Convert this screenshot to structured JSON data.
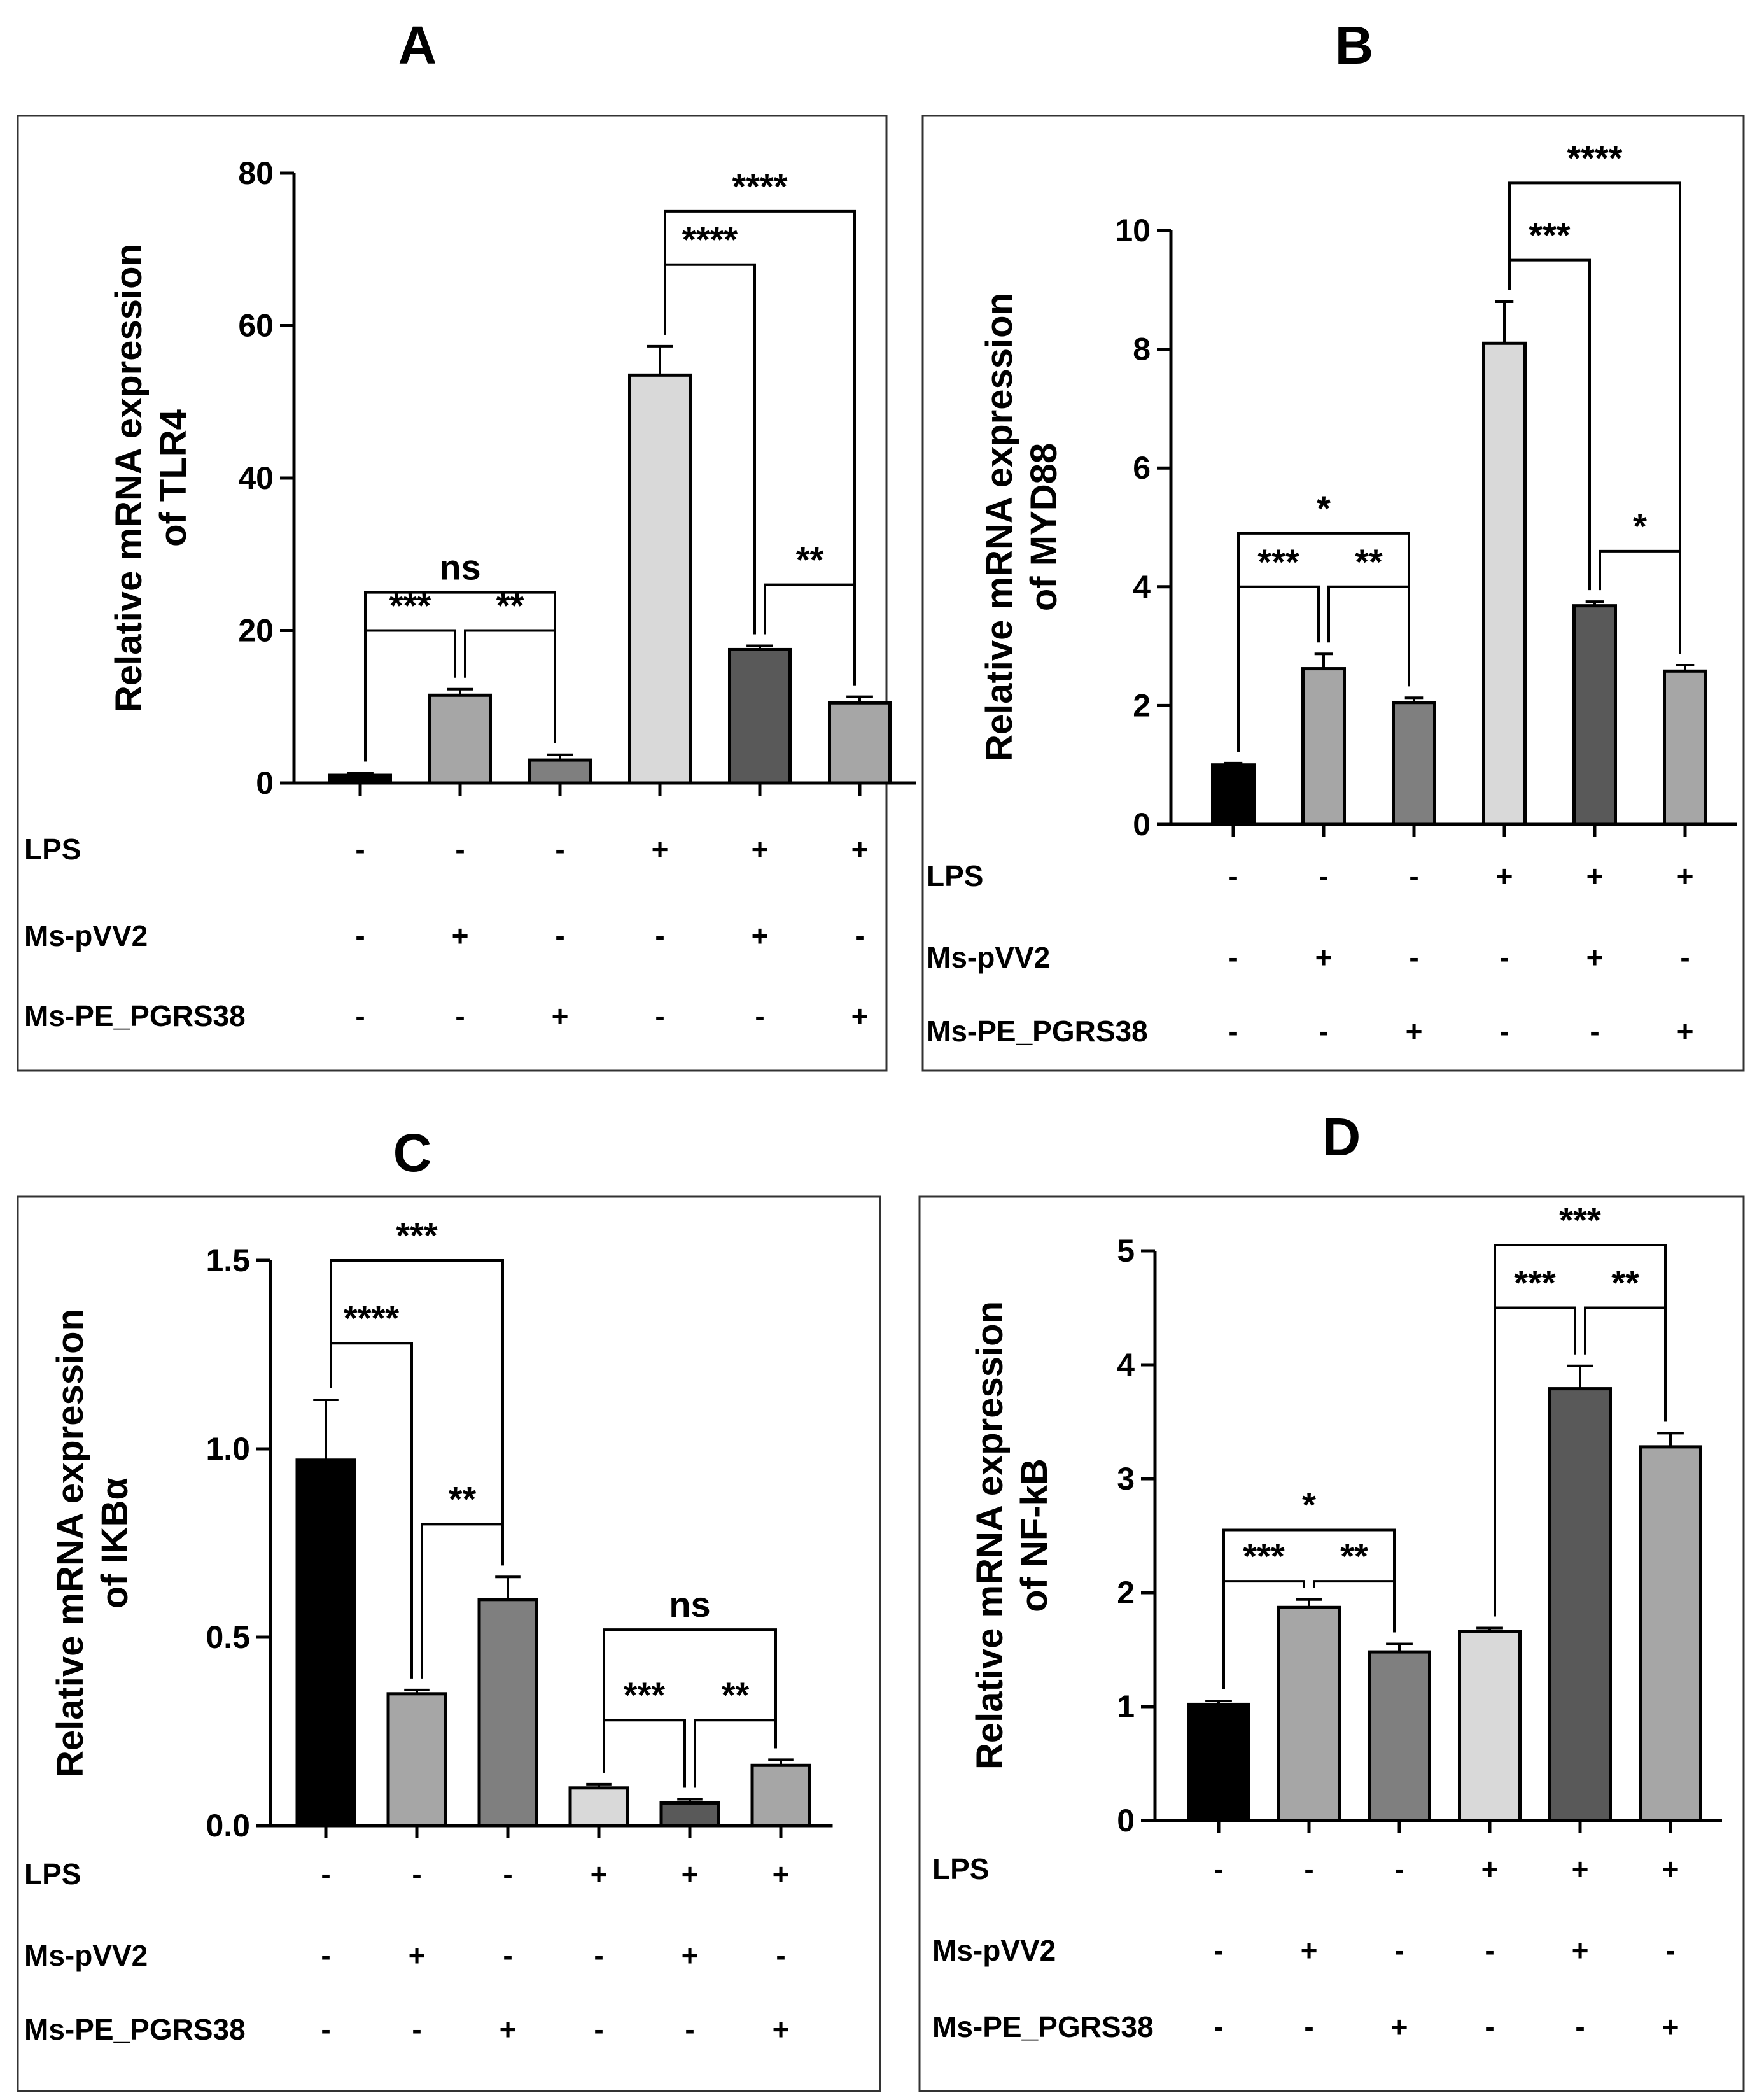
{
  "chart_data": [
    {
      "type": "bar",
      "panel": "A",
      "ylabel": [
        "Relative mRNA expression",
        "of TLR4"
      ],
      "ylim": [
        0,
        80
      ],
      "ticks": [
        "0",
        "20",
        "40",
        "60",
        "80"
      ],
      "values": [
        1,
        11.5,
        3,
        53.5,
        17.5,
        10.5
      ],
      "errors": [
        0.3,
        0.8,
        0.7,
        3.8,
        0.5,
        0.8
      ],
      "colors": [
        "#000000",
        "#a6a6a6",
        "#7f7f7f",
        "#d9d9d9",
        "#595959",
        "#a6a6a6"
      ],
      "brackets": [
        {
          "from": 0,
          "to": 2,
          "y": 25,
          "label": "ns"
        },
        {
          "from": 0,
          "to": 1,
          "y": 20,
          "label": "***"
        },
        {
          "from": 1,
          "to": 2,
          "y": 20,
          "label": "**"
        },
        {
          "from": 3,
          "to": 5,
          "y": 75,
          "label": "****"
        },
        {
          "from": 3,
          "to": 4,
          "y": 68,
          "label": "****"
        },
        {
          "from": 4,
          "to": 5,
          "y": 26,
          "label": "**"
        }
      ],
      "treatments": {
        "rows": [
          "LPS",
          "Ms-pVV2",
          "Ms-PE_PGRS38"
        ],
        "signs": [
          [
            "-",
            "-",
            "-",
            "+",
            "+",
            "+"
          ],
          [
            "-",
            "+",
            "-",
            "-",
            "+",
            "-"
          ],
          [
            "-",
            "-",
            "+",
            "-",
            "-",
            "+"
          ]
        ]
      }
    },
    {
      "type": "bar",
      "panel": "B",
      "ylabel": [
        "Relative mRNA expression",
        "of MYD88"
      ],
      "ylim": [
        0,
        10
      ],
      "ticks": [
        "0",
        "2",
        "4",
        "6",
        "8",
        "10"
      ],
      "values": [
        1,
        2.62,
        2.05,
        8.1,
        3.68,
        2.58
      ],
      "errors": [
        0.03,
        0.25,
        0.08,
        0.7,
        0.07,
        0.1
      ],
      "colors": [
        "#000000",
        "#a6a6a6",
        "#7f7f7f",
        "#d9d9d9",
        "#595959",
        "#a6a6a6"
      ],
      "brackets": [
        {
          "from": 0,
          "to": 2,
          "y": 4.9,
          "label": "*"
        },
        {
          "from": 0,
          "to": 1,
          "y": 4.0,
          "label": "***"
        },
        {
          "from": 1,
          "to": 2,
          "y": 4.0,
          "label": "**"
        },
        {
          "from": 3,
          "to": 5,
          "y": 10.8,
          "label": "****"
        },
        {
          "from": 3,
          "to": 4,
          "y": 9.5,
          "label": "***"
        },
        {
          "from": 4,
          "to": 5,
          "y": 4.6,
          "label": "*"
        }
      ],
      "treatments": {
        "rows": [
          "LPS",
          "Ms-pVV2",
          "Ms-PE_PGRS38"
        ],
        "signs": [
          [
            "-",
            "-",
            "-",
            "+",
            "+",
            "+"
          ],
          [
            "-",
            "+",
            "-",
            "-",
            "+",
            "-"
          ],
          [
            "-",
            "-",
            "+",
            "-",
            "-",
            "+"
          ]
        ]
      }
    },
    {
      "type": "bar",
      "panel": "C",
      "ylabel": [
        "Relative mRNA expression",
        "of IKBα"
      ],
      "ylim": [
        0,
        1.5
      ],
      "ticks": [
        "0.0",
        "0.5",
        "1.0",
        "1.5"
      ],
      "values": [
        0.97,
        0.35,
        0.6,
        0.1,
        0.06,
        0.16
      ],
      "errors": [
        0.16,
        0.01,
        0.06,
        0.01,
        0.01,
        0.015
      ],
      "colors": [
        "#000000",
        "#a6a6a6",
        "#7f7f7f",
        "#d9d9d9",
        "#595959",
        "#a6a6a6"
      ],
      "brackets": [
        {
          "from": 0,
          "to": 2,
          "y": 1.5,
          "label": "***"
        },
        {
          "from": 0,
          "to": 1,
          "y": 1.28,
          "label": "****"
        },
        {
          "from": 1,
          "to": 2,
          "y": 0.8,
          "label": "**"
        },
        {
          "from": 3,
          "to": 5,
          "y": 0.52,
          "label": "ns"
        },
        {
          "from": 3,
          "to": 4,
          "y": 0.28,
          "label": "***"
        },
        {
          "from": 4,
          "to": 5,
          "y": 0.28,
          "label": "**"
        }
      ],
      "treatments": {
        "rows": [
          "LPS",
          "Ms-pVV2",
          "Ms-PE_PGRS38"
        ],
        "signs": [
          [
            "-",
            "-",
            "-",
            "+",
            "+",
            "+"
          ],
          [
            "-",
            "+",
            "-",
            "-",
            "+",
            "-"
          ],
          [
            "-",
            "-",
            "+",
            "-",
            "-",
            "+"
          ]
        ]
      }
    },
    {
      "type": "bar",
      "panel": "D",
      "ylabel": [
        "Relative mRNA expression",
        "of NF-kB"
      ],
      "ylim": [
        0,
        5
      ],
      "ticks": [
        "0",
        "1",
        "2",
        "3",
        "4",
        "5"
      ],
      "values": [
        1.02,
        1.87,
        1.48,
        1.66,
        3.79,
        3.28
      ],
      "errors": [
        0.03,
        0.07,
        0.07,
        0.03,
        0.2,
        0.12
      ],
      "colors": [
        "#000000",
        "#a6a6a6",
        "#7f7f7f",
        "#d9d9d9",
        "#595959",
        "#a6a6a6"
      ],
      "brackets": [
        {
          "from": 0,
          "to": 2,
          "y": 2.55,
          "label": "*"
        },
        {
          "from": 0,
          "to": 1,
          "y": 2.1,
          "label": "***"
        },
        {
          "from": 1,
          "to": 2,
          "y": 2.1,
          "label": "**"
        },
        {
          "from": 3,
          "to": 5,
          "y": 5.05,
          "label": "***"
        },
        {
          "from": 3,
          "to": 4,
          "y": 4.5,
          "label": "***"
        },
        {
          "from": 4,
          "to": 5,
          "y": 4.5,
          "label": "**"
        }
      ],
      "treatments": {
        "rows": [
          "LPS",
          "Ms-pVV2",
          "Ms-PE_PGRS38"
        ],
        "signs": [
          [
            "-",
            "-",
            "-",
            "+",
            "+",
            "+"
          ],
          [
            "-",
            "+",
            "-",
            "-",
            "+",
            "-"
          ],
          [
            "-",
            "-",
            "+",
            "-",
            "-",
            "+"
          ]
        ]
      }
    }
  ]
}
